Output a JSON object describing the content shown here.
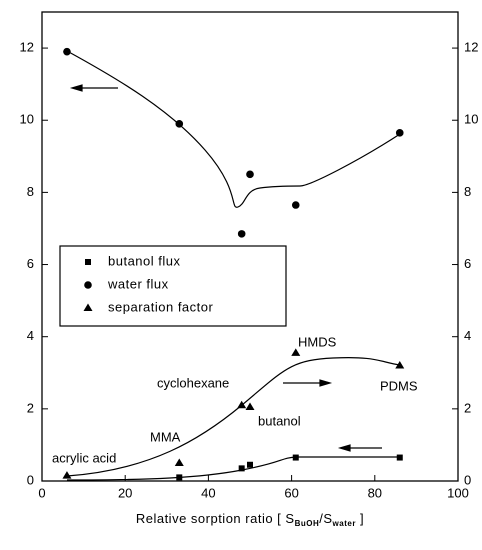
{
  "chart_data": {
    "type": "scatter",
    "x_label": [
      "Relative sorption ratio [ S",
      "BuOH",
      "/S",
      "water",
      " ]"
    ],
    "xlim": [
      0,
      100
    ],
    "xticks": [
      0,
      20,
      40,
      60,
      80,
      100
    ],
    "ylim": [
      0,
      13
    ],
    "yticks": [
      0,
      2,
      4,
      6,
      8,
      10,
      12
    ],
    "y2lim": [
      0,
      13
    ],
    "y2ticks": [
      0,
      2,
      4,
      6,
      8,
      10,
      12
    ],
    "series": [
      {
        "name": "butanol flux",
        "marker": "square",
        "color": "#000000",
        "x": [
          33,
          48,
          50,
          61,
          86
        ],
        "values": [
          0.1,
          0.35,
          0.45,
          0.65,
          0.65
        ]
      },
      {
        "name": "water flux",
        "marker": "circle",
        "color": "#000000",
        "x": [
          6,
          33,
          48,
          50,
          61,
          86
        ],
        "values": [
          11.9,
          9.9,
          6.85,
          8.5,
          7.65,
          9.65
        ]
      },
      {
        "name": "separation factor",
        "marker": "triangle",
        "color": "#000000",
        "x": [
          6,
          33,
          48,
          50,
          61,
          86
        ],
        "values": [
          0.15,
          0.5,
          2.1,
          2.05,
          3.55,
          3.2
        ]
      }
    ],
    "annotations": [
      "acrylic acid",
      "MMA",
      "cyclohexane",
      "butanol",
      "HMDS",
      "PDMS"
    ]
  }
}
